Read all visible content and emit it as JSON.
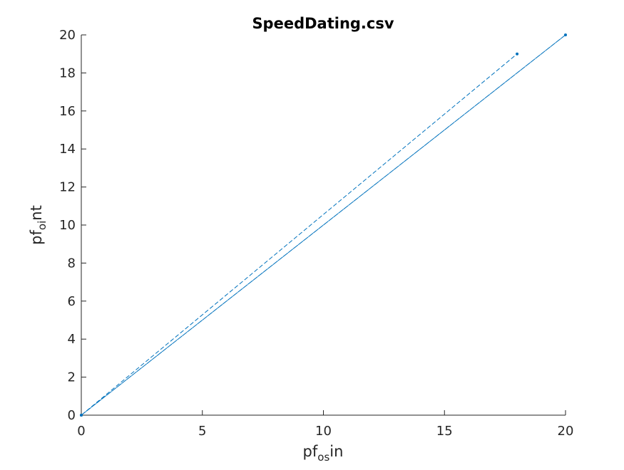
{
  "chart_data": {
    "type": "line",
    "title": "SpeedDating.csv",
    "xlabel_base": "pf",
    "xlabel_sub": "os",
    "xlabel_rest": "in",
    "ylabel_base": "pf",
    "ylabel_sub": "oi",
    "ylabel_rest": "nt",
    "xlim": [
      0,
      20
    ],
    "ylim": [
      0,
      20
    ],
    "xticks": [
      0,
      5,
      10,
      15,
      20
    ],
    "yticks": [
      0,
      2,
      4,
      6,
      8,
      10,
      12,
      14,
      16,
      18,
      20
    ],
    "grid": false,
    "color": "#0072bd",
    "series": [
      {
        "x": [
          0,
          20,
          0,
          18
        ],
        "y": [
          0,
          20,
          0,
          19
        ]
      }
    ]
  }
}
